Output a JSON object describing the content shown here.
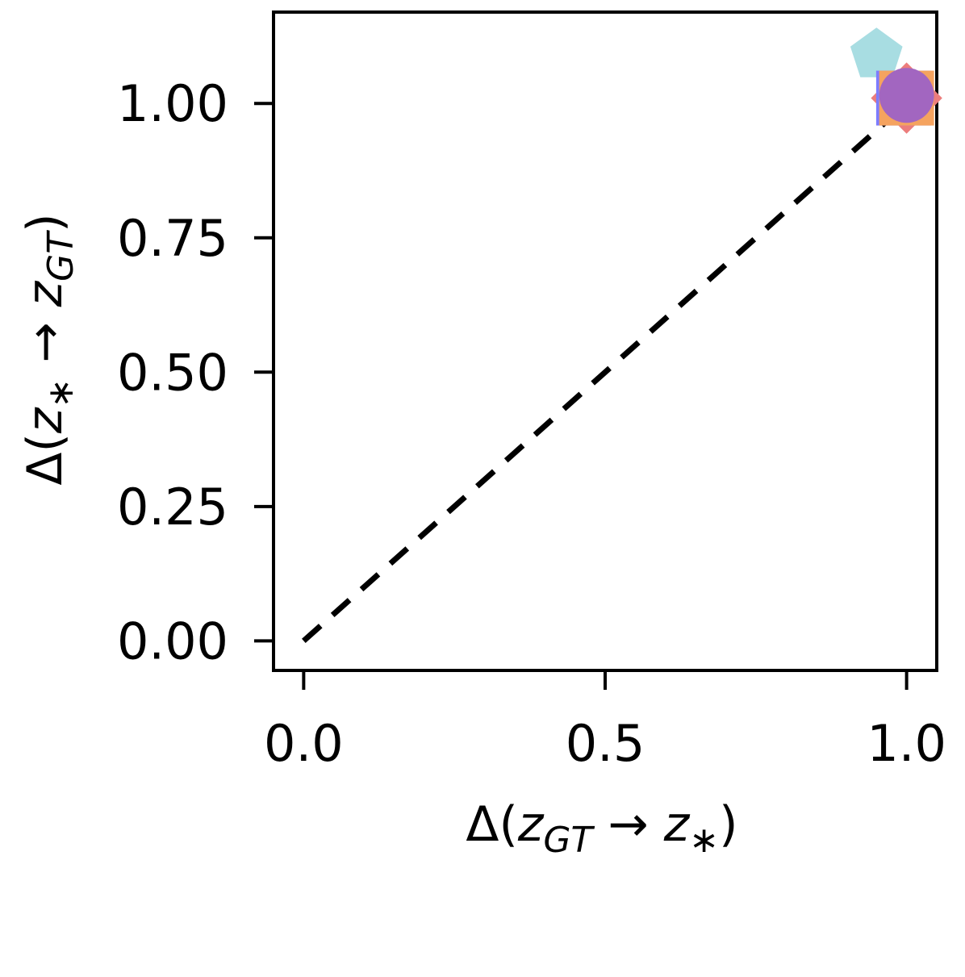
{
  "chart_data": {
    "type": "scatter",
    "title": "",
    "xlabel": {
      "prefix": "Δ(",
      "a": "z",
      "a_sub": "GT",
      "arrow": " → ",
      "b": "z",
      "b_sub": "∗",
      "suffix": ")"
    },
    "ylabel": {
      "prefix": "Δ(",
      "a": "z",
      "a_sub": "∗",
      "arrow": " → ",
      "b": "z",
      "b_sub": "GT",
      "suffix": ")"
    },
    "xlim": [
      -0.05,
      1.05
    ],
    "ylim": [
      -0.055,
      1.17
    ],
    "xticks": [
      0.0,
      0.5,
      1.0
    ],
    "xtick_labels": [
      "0.0",
      "0.5",
      "1.0"
    ],
    "yticks": [
      0.0,
      0.25,
      0.5,
      0.75,
      1.0
    ],
    "ytick_labels": [
      "0.00",
      "0.25",
      "0.50",
      "0.75",
      "1.00"
    ],
    "grid": false,
    "reference_line": {
      "style": "dashed",
      "color": "#000000",
      "points": [
        [
          0,
          0
        ],
        [
          1,
          1
        ]
      ]
    },
    "points": [
      {
        "x": 0.95,
        "y": 1.09,
        "marker": "pentagon",
        "color": "#a8dde2"
      },
      {
        "x": 1.0,
        "y": 1.01,
        "marker": "diamond",
        "color": "#ec7d7c"
      },
      {
        "x": 0.995,
        "y": 1.01,
        "marker": "square",
        "color": "#7d7cff"
      },
      {
        "x": 1.0,
        "y": 1.01,
        "marker": "square",
        "color": "#f5a35f"
      },
      {
        "x": 1.0,
        "y": 1.015,
        "marker": "circle",
        "color": "#a266c0"
      }
    ]
  }
}
